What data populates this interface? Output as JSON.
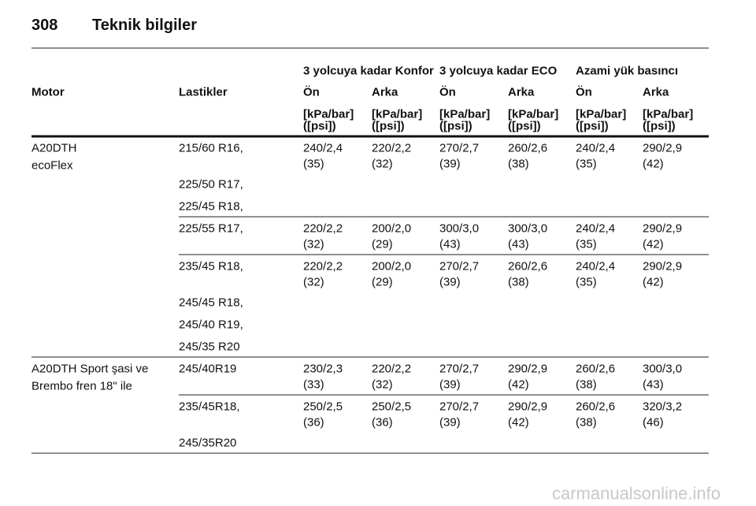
{
  "header": {
    "page": "308",
    "title": "Teknik bilgiler"
  },
  "table": {
    "group_headers": [
      "3 yolcuya kadar Konfor",
      "3 yolcuya kadar ECO",
      "Azami yük basıncı"
    ],
    "columns": [
      "Motor",
      "Lastikler",
      "Ön",
      "Arka",
      "Ön",
      "Arka",
      "Ön",
      "Arka"
    ],
    "units": [
      [
        "[kPa/bar]",
        "([psi])"
      ],
      [
        "[kPa/bar]",
        "([psi])"
      ],
      [
        "[kPa/bar]",
        "([psi])"
      ],
      [
        "[kPa/bar]",
        "([psi])"
      ],
      [
        "[kPa/bar]",
        "([psi])"
      ],
      [
        "[kPa/bar]",
        "([psi])"
      ]
    ],
    "groups": [
      {
        "motor": [
          "A20DTH",
          "ecoFlex"
        ],
        "rows": [
          {
            "tyres": [
              "215/60 R16,",
              "225/50 R17,",
              "225/45 R18,"
            ],
            "values": [
              [
                "240/2,4",
                "(35)"
              ],
              [
                "220/2,2",
                "(32)"
              ],
              [
                "270/2,7",
                "(39)"
              ],
              [
                "260/2,6",
                "(38)"
              ],
              [
                "240/2,4",
                "(35)"
              ],
              [
                "290/2,9",
                "(42)"
              ]
            ]
          },
          {
            "tyres": [
              "225/55 R17,"
            ],
            "values": [
              [
                "220/2,2",
                "(32)"
              ],
              [
                "200/2,0",
                "(29)"
              ],
              [
                "300/3,0",
                "(43)"
              ],
              [
                "300/3,0",
                "(43)"
              ],
              [
                "240/2,4",
                "(35)"
              ],
              [
                "290/2,9",
                "(42)"
              ]
            ]
          },
          {
            "tyres": [
              "235/45 R18,",
              "245/45 R18,",
              "245/40 R19,",
              "245/35 R20"
            ],
            "values": [
              [
                "220/2,2",
                "(32)"
              ],
              [
                "200/2,0",
                "(29)"
              ],
              [
                "270/2,7",
                "(39)"
              ],
              [
                "260/2,6",
                "(38)"
              ],
              [
                "240/2,4",
                "(35)"
              ],
              [
                "290/2,9",
                "(42)"
              ]
            ]
          }
        ]
      },
      {
        "motor": [
          "A20DTH Sport şasi ve",
          "Brembo fren 18\" ile"
        ],
        "rows": [
          {
            "tyres": [
              "245/40R19"
            ],
            "values": [
              [
                "230/2,3",
                "(33)"
              ],
              [
                "220/2,2",
                "(32)"
              ],
              [
                "270/2,7",
                "(39)"
              ],
              [
                "290/2,9",
                "(42)"
              ],
              [
                "260/2,6",
                "(38)"
              ],
              [
                "300/3,0",
                "(43)"
              ]
            ]
          },
          {
            "tyres": [
              "235/45R18,",
              "245/35R20"
            ],
            "values": [
              [
                "250/2,5",
                "(36)"
              ],
              [
                "250/2,5",
                "(36)"
              ],
              [
                "270/2,7",
                "(39)"
              ],
              [
                "290/2,9",
                "(42)"
              ],
              [
                "260/2,6",
                "(38)"
              ],
              [
                "320/3,2",
                "(46)"
              ]
            ]
          }
        ]
      }
    ]
  },
  "footer": "carmanualsonline.info"
}
